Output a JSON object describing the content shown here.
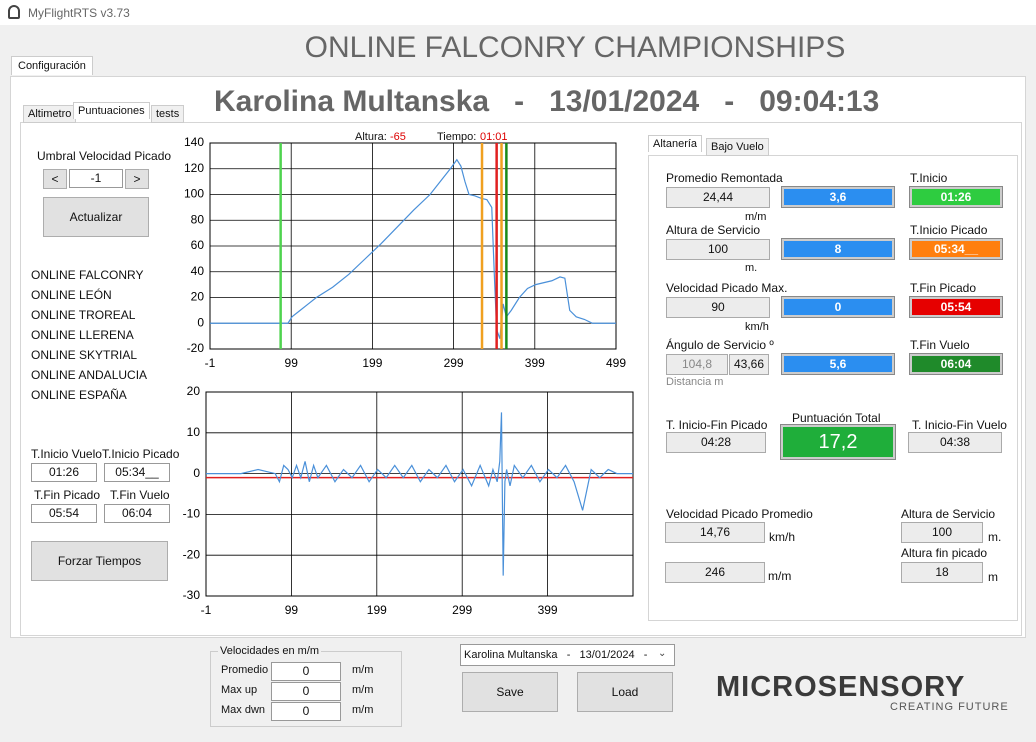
{
  "window": {
    "title": "MyFlightRTS v3.73"
  },
  "tabs": {
    "main": "Configuración",
    "inner": [
      "Altimetro",
      "Puntuaciones",
      "tests"
    ],
    "right": [
      "Altanería",
      "Bajo Vuelo"
    ]
  },
  "header": {
    "title": "ONLINE FALCONRY CHAMPIONSHIPS",
    "subtitle": "Karolina Multanska   -   13/01/2024   -   09:04:13"
  },
  "left": {
    "threshold_label": "Umbral Velocidad Picado",
    "dec": "<",
    "threshold": "-1",
    "inc": ">",
    "update": "Actualizar",
    "events": [
      "ONLINE FALCONRY",
      "ONLINE LEÓN",
      "ONLINE TROREAL",
      "ONLINE LLERENA",
      "ONLINE SKYTRIAL",
      "ONLINE ANDALUCIA",
      "ONLINE ESPAÑA"
    ],
    "times": [
      {
        "label": "T.Inicio Vuelo",
        "value": "01:26"
      },
      {
        "label": "T.Inicio Picado",
        "value": "05:34__"
      },
      {
        "label": "T.Fin Picado",
        "value": "05:54"
      },
      {
        "label": "T.Fin Vuelo",
        "value": "06:04"
      }
    ],
    "force": "Forzar Tiempos"
  },
  "chart_status": {
    "altura_label": "Altura:",
    "altura": "-65",
    "tiempo_label": "Tiempo:",
    "tiempo": "01:01"
  },
  "chart_data": [
    {
      "type": "line",
      "grid": true,
      "color": "#4a90d9",
      "x": [
        -1,
        40,
        85,
        95,
        100,
        110,
        120,
        130,
        150,
        170,
        190,
        210,
        230,
        250,
        270,
        285,
        295,
        303,
        308,
        313,
        318,
        325,
        333,
        340,
        346,
        349,
        352,
        356,
        360,
        364,
        370,
        380,
        390,
        400,
        420,
        430,
        436,
        442,
        450,
        460,
        470,
        490,
        499
      ],
      "values": [
        0,
        0,
        0,
        0,
        5,
        10,
        15,
        20,
        28,
        38,
        50,
        62,
        75,
        88,
        100,
        112,
        120,
        127,
        122,
        110,
        100,
        99,
        97,
        96,
        90,
        40,
        -5,
        -12,
        15,
        5,
        10,
        20,
        27,
        30,
        33,
        36,
        35,
        10,
        5,
        3,
        0,
        0,
        0
      ],
      "xlim": [
        -1,
        499
      ],
      "xticks": [
        -1,
        99,
        199,
        299,
        399,
        499
      ],
      "ylim": [
        -20,
        140
      ],
      "yticks": [
        -20,
        0,
        20,
        40,
        60,
        80,
        100,
        120,
        140
      ],
      "markers": [
        {
          "x": 86,
          "color": "#4fd34f"
        },
        {
          "x": 334,
          "color": "#f0a020"
        },
        {
          "x": 352,
          "color": "#e02020"
        },
        {
          "x": 358,
          "color": "#f0a020"
        },
        {
          "x": 364,
          "color": "#1a8a1a"
        }
      ]
    },
    {
      "type": "line",
      "grid": true,
      "color": "#4a90d9",
      "x": [
        -1,
        20,
        40,
        60,
        80,
        85,
        90,
        95,
        100,
        105,
        110,
        115,
        120,
        125,
        130,
        140,
        150,
        160,
        170,
        180,
        190,
        200,
        210,
        220,
        230,
        240,
        250,
        260,
        270,
        280,
        290,
        300,
        310,
        320,
        330,
        335,
        340,
        343,
        345,
        347,
        349,
        351,
        355,
        360,
        370,
        380,
        390,
        400,
        410,
        420,
        430,
        440,
        450,
        460,
        470,
        480,
        490,
        499
      ],
      "values": [
        0,
        0,
        0,
        1,
        0,
        -2,
        2,
        1,
        -1,
        2,
        -1,
        3,
        -2,
        2,
        -1,
        2,
        -2,
        1,
        -1,
        2,
        -2,
        1,
        -1,
        2,
        -1,
        2,
        -2,
        1,
        -1,
        2,
        -2,
        1,
        -3,
        2,
        -3,
        1,
        -2,
        3,
        15,
        -25,
        -2,
        1,
        -3,
        2,
        -1,
        2,
        -2,
        1,
        -1,
        2,
        -2,
        -9,
        1,
        -1,
        1,
        0,
        0,
        0
      ],
      "xlim": [
        -1,
        499
      ],
      "xticks": [
        -1,
        99,
        199,
        299,
        399
      ],
      "ylim": [
        -30,
        20
      ],
      "yticks": [
        -30,
        -20,
        -10,
        0,
        10,
        20
      ],
      "hline": {
        "y": -1,
        "color": "#e02020"
      }
    }
  ],
  "right": {
    "rows": [
      {
        "label": "Promedio Remontada",
        "value": "24,44",
        "unit": "m/m",
        "score": "3,6",
        "time_label": "T.Inicio",
        "time": "01:26"
      },
      {
        "label": "Altura de Servicio",
        "value": "100",
        "unit": "m.",
        "score": "8",
        "time_label": "T.Inicio Picado",
        "time": "05:34__"
      },
      {
        "label": "Velocidad Picado Max.",
        "value": "90",
        "unit": "km/h",
        "score": "0",
        "time_label": "T.Fin Picado",
        "time": "05:54"
      },
      {
        "label": "Ángulo de Servicio º",
        "value": "104,8",
        "value2": "43,66",
        "unit": "Distancia m",
        "score": "5,6",
        "time_label": "T.Fin Vuelo",
        "time": "06:04"
      }
    ],
    "totals": {
      "dive_label": "T. Inicio-Fin Picado",
      "dive": "04:28",
      "score_label": "Puntuación Total",
      "score": "17,2",
      "flight_label": "T. Inicio-Fin Vuelo",
      "flight": "04:38"
    },
    "bottom": {
      "avg_label": "Velocidad Picado Promedio",
      "avg": "14,76",
      "avg_unit": "km/h",
      "rate": "246",
      "rate_unit": "m/m",
      "alt_label": "Altura de Servicio",
      "alt": "100",
      "alt_unit": "m.",
      "end_label": "Altura fin picado",
      "end": "18",
      "end_unit": "m"
    }
  },
  "speeds": {
    "title": "Velocidades en m/m",
    "rows": [
      {
        "label": "Promedio",
        "value": "0",
        "unit": "m/m"
      },
      {
        "label": "Max up",
        "value": "0",
        "unit": "m/m"
      },
      {
        "label": "Max dwn",
        "value": "0",
        "unit": "m/m"
      }
    ]
  },
  "selector": "Karolina Multanska   -   13/01/2024   -",
  "buttons": {
    "save": "Save",
    "load": "Load"
  },
  "logo": {
    "name": "MICROSENSORY",
    "tagline": "CREATING FUTURE"
  }
}
